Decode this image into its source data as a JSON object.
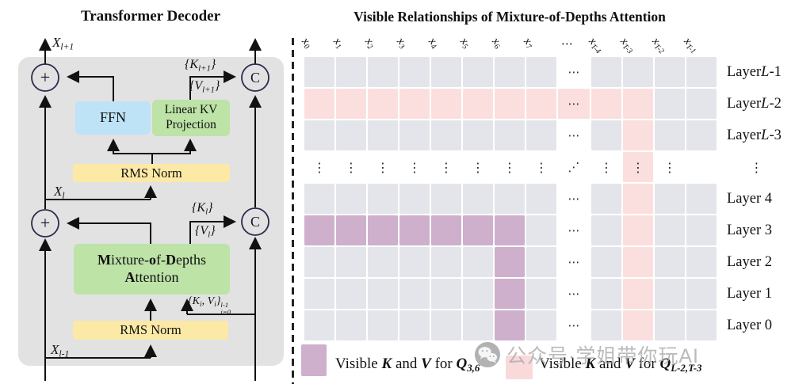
{
  "colors": {
    "panel": "#e2e2e2",
    "blue": "#bee3f6",
    "green": "#bde3a7",
    "yellow": "#fce9a6",
    "cell_gray": "#e4e5ea",
    "cell_pink": "#fbdfde",
    "cell_purple": "#ceb0cd",
    "legend_pink": "#f9d9da",
    "line": "#111111",
    "circle_stroke": "#2b2b4e"
  },
  "left": {
    "title": "Transformer Decoder",
    "node_plus": "+",
    "node_concat": "C",
    "labels": {
      "x_out": "X_{l+1}",
      "k_out": "{K_{l+1}}",
      "v_out": "{V_{l+1}}",
      "x_mid": "X_{l}",
      "k_mid": "{K_{l}}",
      "v_mid": "{V_{l}}",
      "kv_cache": "{K_{i}, V_{i}}_{i=0}^{l-1}",
      "x_in": "X_{l-1}"
    },
    "blocks": {
      "ffn": "FFN",
      "linear_kv_line1": "Linear KV",
      "linear_kv_line2": "Projection",
      "rms_norm_top": "RMS Norm",
      "mod_line1": "**M**ixture-**o**f-**D**epths",
      "mod_line2": "**A**ttention",
      "rms_norm_bottom": "RMS Norm"
    }
  },
  "right": {
    "title": "Visible Relationships of Mixture-of-Depths Attention",
    "glyphs": {
      "h_ellipsis": "⋯",
      "v_ellipsis": "⋮",
      "diag_ellipsis": "⋰"
    },
    "columns": [
      "x_{0}",
      "x_{1}",
      "x_{2}",
      "x_{3}",
      "x_{4}",
      "x_{5}",
      "x_{6}",
      "x_{7}",
      "⋯",
      "x_{T-4}",
      "x_{T-3}",
      "x_{T-2}",
      "x_{T-1}"
    ],
    "rows": [
      {
        "label": "Layer *L*-1",
        "cells": [
          "g",
          "g",
          "g",
          "g",
          "g",
          "g",
          "g",
          "g",
          "e",
          "g",
          "g",
          "g",
          "g"
        ]
      },
      {
        "label": "Layer *L*-2",
        "cells": [
          "p",
          "p",
          "p",
          "p",
          "p",
          "p",
          "p",
          "p",
          "ep",
          "p",
          "p",
          "g",
          "g"
        ]
      },
      {
        "label": "Layer *L*-3",
        "cells": [
          "g",
          "g",
          "g",
          "g",
          "g",
          "g",
          "g",
          "g",
          "e",
          "g",
          "p",
          "g",
          "g"
        ]
      },
      {
        "label": "⋮",
        "type": "dots",
        "cells": [
          "d",
          "d",
          "d",
          "d",
          "d",
          "d",
          "d",
          "d",
          "diag",
          "d",
          "dp",
          "d",
          "blank"
        ]
      },
      {
        "label": "Layer 4",
        "cells": [
          "g",
          "g",
          "g",
          "g",
          "g",
          "g",
          "g",
          "g",
          "e",
          "g",
          "p",
          "g",
          "g"
        ]
      },
      {
        "label": "Layer 3",
        "cells": [
          "u",
          "u",
          "u",
          "u",
          "u",
          "u",
          "u",
          "g",
          "e",
          "g",
          "p",
          "g",
          "g"
        ]
      },
      {
        "label": "Layer 2",
        "cells": [
          "g",
          "g",
          "g",
          "g",
          "g",
          "g",
          "u",
          "g",
          "e",
          "g",
          "p",
          "g",
          "g"
        ]
      },
      {
        "label": "Layer 1",
        "cells": [
          "g",
          "g",
          "g",
          "g",
          "g",
          "g",
          "u",
          "g",
          "e",
          "g",
          "p",
          "g",
          "g"
        ]
      },
      {
        "label": "Layer 0",
        "cells": [
          "g",
          "g",
          "g",
          "g",
          "g",
          "g",
          "u",
          "g",
          "e",
          "g",
          "p",
          "g",
          "g"
        ]
      }
    ],
    "legend": [
      {
        "text": "Visible ~~K~~ and ~~V~~ for ~~Q_{3,6}~~"
      },
      {
        "text": "Visible ~~K~~ and ~~V~~ for ~~Q_{L-2,T-3}~~"
      }
    ]
  },
  "watermark": {
    "text": "公众号·学姐带你玩AI"
  }
}
